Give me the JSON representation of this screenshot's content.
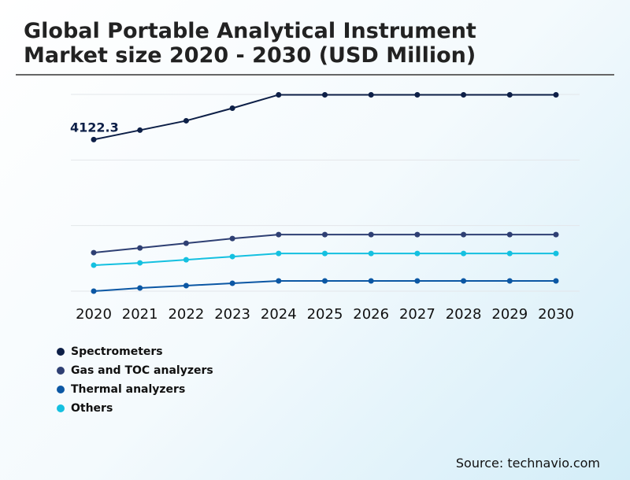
{
  "title_line1": "Global Portable Analytical Instrument",
  "title_line2": "Market size 2020 - 2030 (USD Million)",
  "source": "Source: technavio.com",
  "chart_data": {
    "type": "line",
    "title": "Global Portable Analytical Instrument Market size 2020 - 2030 (USD Million)",
    "categories": [
      "2020",
      "2021",
      "2022",
      "2023",
      "2024",
      "2025",
      "2026",
      "2027",
      "2028",
      "2029",
      "2030"
    ],
    "ylim": [
      0,
      5350
    ],
    "grid": true,
    "legend": "bottom-left",
    "series": [
      {
        "name": "Spectrometers",
        "color": "#0d1f47",
        "values": [
          4122.3,
          4378,
          4634,
          4976,
          5340,
          5340,
          5340,
          5340,
          5340,
          5340,
          5340
        ]
      },
      {
        "name": "Gas and TOC analyzers",
        "color": "#2e3f73",
        "values": [
          1047,
          1175,
          1303,
          1431,
          1538,
          1538,
          1538,
          1538,
          1538,
          1538,
          1538
        ]
      },
      {
        "name": "Thermal analyzers",
        "color": "#0b57a4",
        "values": [
          0,
          85,
          150,
          214,
          278,
          278,
          278,
          278,
          278,
          278,
          278
        ]
      },
      {
        "name": "Others",
        "color": "#14c0e0",
        "values": [
          705,
          769,
          854,
          940,
          1025,
          1025,
          1025,
          1025,
          1025,
          1025,
          1025
        ]
      }
    ],
    "annotations": [
      {
        "series": "Spectrometers",
        "x": "2020",
        "label": "4122.3"
      }
    ]
  }
}
